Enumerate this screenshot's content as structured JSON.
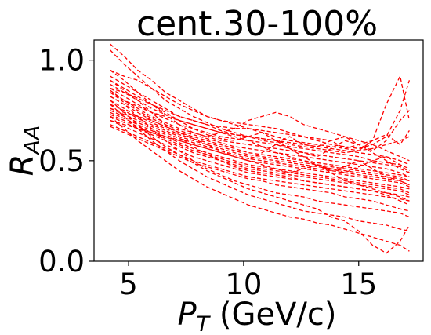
{
  "chart_data": {
    "type": "line",
    "title": "cent.30-100%",
    "xlabel": {
      "main": "P",
      "sub": "T",
      "rest": " (GeV/c)"
    },
    "ylabel": {
      "main": "R",
      "sub": "AA"
    },
    "xlim": [
      3.5,
      17.8
    ],
    "ylim": [
      0.0,
      1.1
    ],
    "xticks": [
      5,
      10,
      15
    ],
    "xtick_labels": [
      "5",
      "10",
      "15"
    ],
    "yticks": [
      0.0,
      0.5,
      1.0
    ],
    "ytick_labels": [
      "0.0",
      "0.5",
      "1.0"
    ],
    "line_style": "dashed",
    "color": "#ff0000",
    "x": [
      4.2,
      4.8,
      5.4,
      6.0,
      6.6,
      7.2,
      7.8,
      8.4,
      9.0,
      9.6,
      10.2,
      10.8,
      11.4,
      12.0,
      12.6,
      13.2,
      13.8,
      14.4,
      15.0,
      15.6,
      16.2,
      16.8,
      17.2
    ],
    "series": [
      {
        "values": [
          1.08,
          1.02,
          0.95,
          0.9,
          0.84,
          0.8,
          0.76,
          0.72,
          0.7,
          0.68,
          0.66,
          0.64,
          0.62,
          0.6,
          0.59,
          0.58,
          0.57,
          0.56,
          0.55,
          0.56,
          0.58,
          0.6,
          0.62
        ]
      },
      {
        "values": [
          1.05,
          0.98,
          0.92,
          0.86,
          0.8,
          0.76,
          0.72,
          0.69,
          0.66,
          0.64,
          0.62,
          0.6,
          0.59,
          0.62,
          0.58,
          0.57,
          0.6,
          0.56,
          0.58,
          0.55,
          0.6,
          0.7,
          0.75
        ]
      },
      {
        "values": [
          0.95,
          0.92,
          0.9,
          0.86,
          0.82,
          0.78,
          0.75,
          0.72,
          0.7,
          0.69,
          0.68,
          0.67,
          0.66,
          0.64,
          0.62,
          0.61,
          0.6,
          0.62,
          0.58,
          0.6,
          0.63,
          0.58,
          0.65
        ]
      },
      {
        "values": [
          0.92,
          0.88,
          0.84,
          0.8,
          0.76,
          0.72,
          0.7,
          0.68,
          0.67,
          0.66,
          0.66,
          0.65,
          0.64,
          0.63,
          0.62,
          0.6,
          0.58,
          0.57,
          0.56,
          0.58,
          0.62,
          0.75,
          0.9
        ]
      },
      {
        "values": [
          0.9,
          0.86,
          0.82,
          0.78,
          0.75,
          0.72,
          0.7,
          0.68,
          0.65,
          0.63,
          0.62,
          0.61,
          0.6,
          0.58,
          0.57,
          0.56,
          0.55,
          0.54,
          0.55,
          0.6,
          0.78,
          0.92,
          0.7
        ]
      },
      {
        "values": [
          0.88,
          0.84,
          0.8,
          0.76,
          0.73,
          0.7,
          0.68,
          0.66,
          0.64,
          0.63,
          0.62,
          0.61,
          0.6,
          0.59,
          0.58,
          0.57,
          0.56,
          0.55,
          0.54,
          0.53,
          0.52,
          0.5,
          0.48
        ]
      },
      {
        "values": [
          0.86,
          0.82,
          0.78,
          0.74,
          0.71,
          0.68,
          0.66,
          0.64,
          0.62,
          0.61,
          0.6,
          0.59,
          0.58,
          0.57,
          0.56,
          0.55,
          0.54,
          0.53,
          0.52,
          0.5,
          0.49,
          0.48,
          0.46
        ]
      },
      {
        "values": [
          0.85,
          0.8,
          0.76,
          0.72,
          0.69,
          0.66,
          0.64,
          0.62,
          0.6,
          0.59,
          0.58,
          0.57,
          0.56,
          0.55,
          0.54,
          0.53,
          0.52,
          0.51,
          0.5,
          0.49,
          0.48,
          0.47,
          0.45
        ]
      },
      {
        "values": [
          0.84,
          0.79,
          0.75,
          0.71,
          0.68,
          0.65,
          0.63,
          0.61,
          0.59,
          0.57,
          0.56,
          0.55,
          0.54,
          0.53,
          0.52,
          0.51,
          0.5,
          0.49,
          0.48,
          0.47,
          0.46,
          0.44,
          0.42
        ]
      },
      {
        "values": [
          0.82,
          0.78,
          0.74,
          0.7,
          0.67,
          0.64,
          0.62,
          0.6,
          0.58,
          0.56,
          0.54,
          0.53,
          0.52,
          0.51,
          0.5,
          0.49,
          0.48,
          0.47,
          0.46,
          0.45,
          0.44,
          0.43,
          0.42
        ]
      },
      {
        "values": [
          0.8,
          0.76,
          0.72,
          0.69,
          0.66,
          0.63,
          0.61,
          0.59,
          0.57,
          0.55,
          0.53,
          0.52,
          0.51,
          0.5,
          0.49,
          0.48,
          0.47,
          0.46,
          0.45,
          0.44,
          0.43,
          0.42,
          0.4
        ]
      },
      {
        "values": [
          0.78,
          0.75,
          0.71,
          0.68,
          0.65,
          0.62,
          0.6,
          0.58,
          0.56,
          0.54,
          0.52,
          0.51,
          0.5,
          0.49,
          0.48,
          0.47,
          0.46,
          0.45,
          0.44,
          0.43,
          0.42,
          0.41,
          0.4
        ]
      },
      {
        "values": [
          0.76,
          0.73,
          0.7,
          0.67,
          0.64,
          0.61,
          0.59,
          0.57,
          0.55,
          0.53,
          0.51,
          0.5,
          0.49,
          0.48,
          0.47,
          0.46,
          0.45,
          0.44,
          0.43,
          0.42,
          0.41,
          0.4,
          0.38
        ]
      },
      {
        "values": [
          0.75,
          0.72,
          0.69,
          0.66,
          0.63,
          0.6,
          0.58,
          0.56,
          0.54,
          0.52,
          0.5,
          0.49,
          0.48,
          0.47,
          0.46,
          0.45,
          0.44,
          0.43,
          0.42,
          0.41,
          0.4,
          0.39,
          0.37
        ]
      },
      {
        "values": [
          0.74,
          0.71,
          0.68,
          0.65,
          0.62,
          0.59,
          0.56,
          0.54,
          0.52,
          0.5,
          0.48,
          0.47,
          0.46,
          0.45,
          0.44,
          0.43,
          0.42,
          0.41,
          0.4,
          0.39,
          0.38,
          0.37,
          0.36
        ]
      },
      {
        "values": [
          0.73,
          0.7,
          0.67,
          0.64,
          0.61,
          0.58,
          0.55,
          0.53,
          0.51,
          0.49,
          0.47,
          0.46,
          0.45,
          0.44,
          0.43,
          0.42,
          0.41,
          0.4,
          0.39,
          0.38,
          0.37,
          0.36,
          0.34
        ]
      },
      {
        "values": [
          0.72,
          0.69,
          0.66,
          0.63,
          0.6,
          0.57,
          0.54,
          0.52,
          0.5,
          0.48,
          0.46,
          0.45,
          0.44,
          0.43,
          0.42,
          0.41,
          0.4,
          0.39,
          0.38,
          0.37,
          0.36,
          0.35,
          0.33
        ]
      },
      {
        "values": [
          0.7,
          0.67,
          0.64,
          0.61,
          0.58,
          0.55,
          0.52,
          0.5,
          0.48,
          0.46,
          0.44,
          0.43,
          0.42,
          0.41,
          0.4,
          0.39,
          0.38,
          0.37,
          0.36,
          0.35,
          0.34,
          0.33,
          0.32
        ]
      },
      {
        "values": [
          0.68,
          0.65,
          0.62,
          0.59,
          0.56,
          0.53,
          0.5,
          0.48,
          0.46,
          0.44,
          0.42,
          0.41,
          0.4,
          0.39,
          0.38,
          0.37,
          0.36,
          0.35,
          0.34,
          0.33,
          0.32,
          0.31,
          0.3
        ]
      },
      {
        "values": [
          0.67,
          0.64,
          0.61,
          0.58,
          0.55,
          0.52,
          0.49,
          0.47,
          0.45,
          0.43,
          0.41,
          0.4,
          0.38,
          0.37,
          0.36,
          0.35,
          0.34,
          0.32,
          0.31,
          0.3,
          0.28,
          0.26,
          0.25
        ]
      },
      {
        "values": [
          0.9,
          0.85,
          0.8,
          0.74,
          0.68,
          0.62,
          0.57,
          0.53,
          0.5,
          0.47,
          0.45,
          0.44,
          0.43,
          0.42,
          0.4,
          0.39,
          0.38,
          0.37,
          0.36,
          0.35,
          0.33,
          0.3,
          0.28
        ]
      },
      {
        "values": [
          0.82,
          0.78,
          0.72,
          0.66,
          0.6,
          0.55,
          0.5,
          0.46,
          0.43,
          0.4,
          0.38,
          0.36,
          0.34,
          0.33,
          0.32,
          0.3,
          0.29,
          0.28,
          0.27,
          0.26,
          0.25,
          0.24,
          0.22
        ]
      },
      {
        "values": [
          0.78,
          0.72,
          0.66,
          0.6,
          0.55,
          0.5,
          0.46,
          0.42,
          0.39,
          0.36,
          0.33,
          0.31,
          0.29,
          0.27,
          0.25,
          0.24,
          0.23,
          0.22,
          0.2,
          0.19,
          0.18,
          0.16,
          0.15
        ]
      },
      {
        "values": [
          0.72,
          0.66,
          0.6,
          0.55,
          0.5,
          0.45,
          0.41,
          0.37,
          0.34,
          0.31,
          0.28,
          0.26,
          0.24,
          0.22,
          0.21,
          0.19,
          0.18,
          0.16,
          0.14,
          0.12,
          0.1,
          0.08,
          0.05
        ]
      },
      {
        "values": [
          0.8,
          0.74,
          0.68,
          0.62,
          0.57,
          0.53,
          0.49,
          0.45,
          0.42,
          0.39,
          0.36,
          0.34,
          0.32,
          0.3,
          0.28,
          0.26,
          0.22,
          0.2,
          0.15,
          0.08,
          0.04,
          0.1,
          0.18
        ]
      },
      {
        "values": [
          0.95,
          0.9,
          0.84,
          0.78,
          0.73,
          0.68,
          0.64,
          0.62,
          0.64,
          0.66,
          0.7,
          0.72,
          0.74,
          0.72,
          0.68,
          0.66,
          0.64,
          0.62,
          0.6,
          0.58,
          0.55,
          0.52,
          0.5
        ]
      },
      {
        "values": [
          0.86,
          0.84,
          0.81,
          0.78,
          0.74,
          0.7,
          0.66,
          0.63,
          0.61,
          0.6,
          0.62,
          0.64,
          0.6,
          0.56,
          0.54,
          0.52,
          0.56,
          0.6,
          0.58,
          0.54,
          0.5,
          0.46,
          0.44
        ]
      },
      {
        "values": [
          0.76,
          0.74,
          0.72,
          0.7,
          0.67,
          0.64,
          0.61,
          0.58,
          0.55,
          0.52,
          0.5,
          0.54,
          0.58,
          0.56,
          0.52,
          0.48,
          0.45,
          0.47,
          0.5,
          0.46,
          0.42,
          0.4,
          0.38
        ]
      },
      {
        "values": [
          0.7,
          0.68,
          0.66,
          0.64,
          0.62,
          0.6,
          0.58,
          0.56,
          0.54,
          0.52,
          0.5,
          0.48,
          0.46,
          0.44,
          0.46,
          0.48,
          0.44,
          0.4,
          0.38,
          0.36,
          0.34,
          0.32,
          0.3
        ]
      },
      {
        "values": [
          0.84,
          0.8,
          0.77,
          0.74,
          0.72,
          0.7,
          0.68,
          0.66,
          0.64,
          0.62,
          0.6,
          0.57,
          0.54,
          0.52,
          0.5,
          0.48,
          0.46,
          0.44,
          0.47,
          0.5,
          0.52,
          0.48,
          0.44
        ]
      }
    ]
  }
}
